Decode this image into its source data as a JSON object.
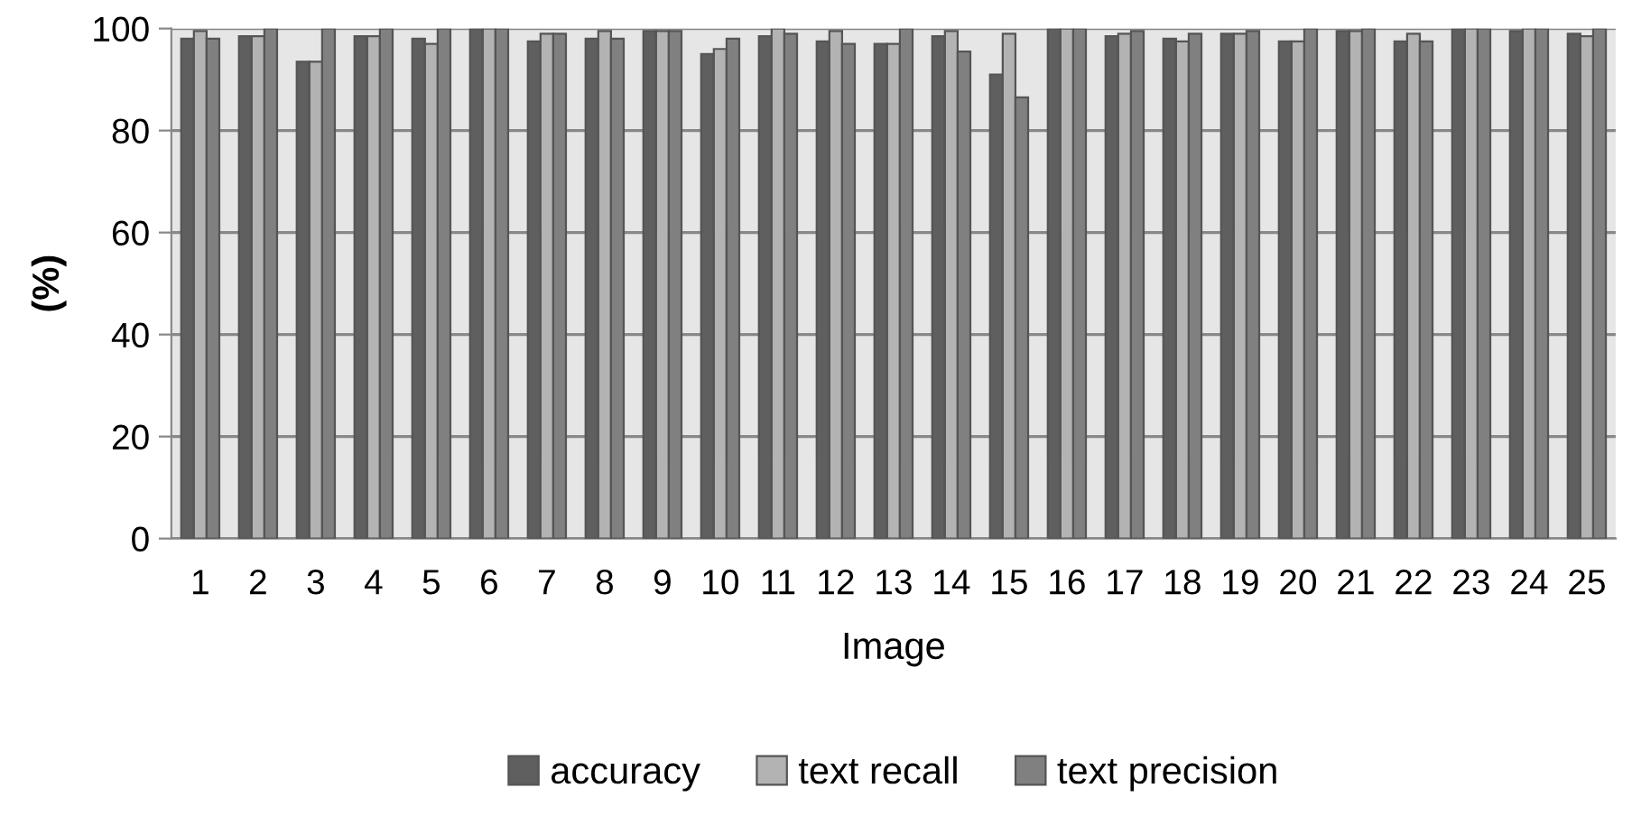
{
  "chart_data": {
    "type": "bar",
    "xlabel": "Image",
    "ylabel": "(%)",
    "categories": [
      "1",
      "2",
      "3",
      "4",
      "5",
      "6",
      "7",
      "8",
      "9",
      "10",
      "11",
      "12",
      "13",
      "14",
      "15",
      "16",
      "17",
      "18",
      "19",
      "20",
      "21",
      "22",
      "23",
      "24",
      "25"
    ],
    "series": [
      {
        "name": "accuracy",
        "color": "#5f5f5f",
        "values": [
          98,
          98.5,
          93.5,
          98.5,
          98,
          100,
          97.5,
          98,
          99.5,
          95,
          98.5,
          97.5,
          97,
          98.5,
          91,
          100,
          98.5,
          98,
          99,
          97.5,
          99.5,
          97.5,
          100,
          99.5,
          99
        ]
      },
      {
        "name": "text recall",
        "color": "#b3b3b3",
        "values": [
          99.5,
          98.5,
          93.5,
          98.5,
          97,
          100,
          99,
          99.5,
          99.5,
          96,
          100,
          99.5,
          97,
          99.5,
          99,
          100,
          99,
          97.5,
          99,
          97.5,
          99.5,
          99,
          100,
          100,
          98.5
        ]
      },
      {
        "name": "text precision",
        "color": "#808080",
        "values": [
          98,
          100,
          100,
          100,
          100,
          100,
          99,
          98,
          99.5,
          98,
          99,
          97,
          100,
          95.5,
          86.5,
          100,
          99.5,
          99,
          99.5,
          100,
          100,
          97.5,
          100,
          100,
          100
        ]
      }
    ],
    "ylim": [
      0,
      100
    ],
    "yticks": [
      0,
      20,
      40,
      60,
      80,
      100
    ],
    "grid": "y",
    "legend": "bottom"
  }
}
